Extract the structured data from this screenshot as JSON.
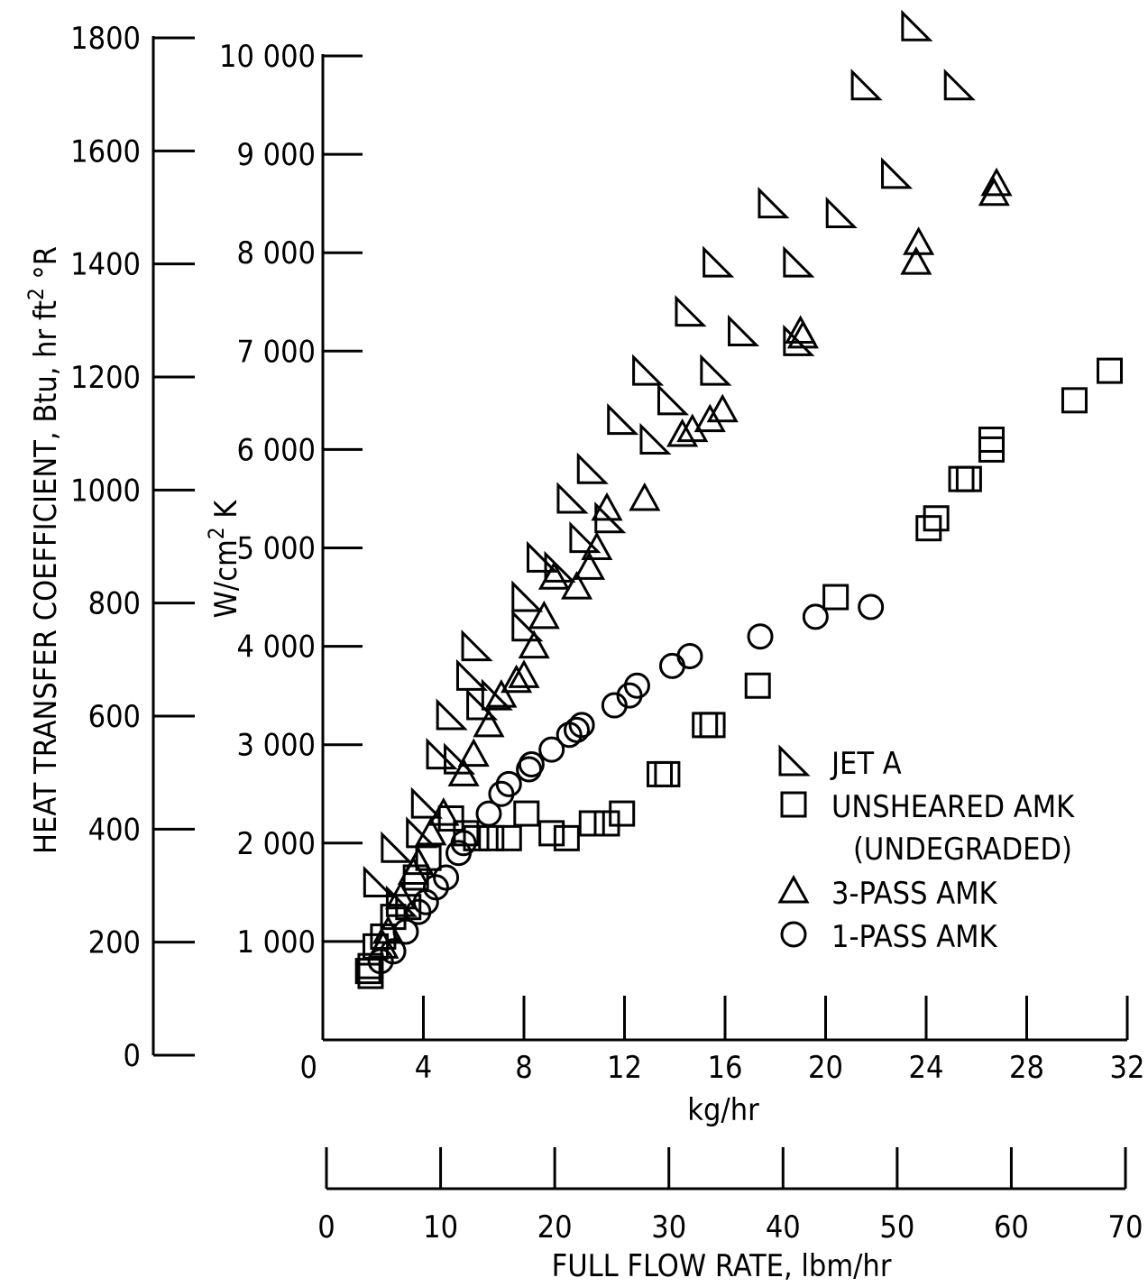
{
  "chart_data": {
    "type": "scatter",
    "title": "",
    "axes": {
      "y_left_outer": {
        "label_main": "HEAT TRANSFER COEFFICIENT, Btu, hr ft",
        "label_sup": "2",
        "label_end": " °R",
        "ticks": [
          "1800",
          "1600",
          "1400",
          "1200",
          "1000",
          "800",
          "600",
          "400",
          "200",
          "0"
        ],
        "ylim": [
          0,
          1800
        ]
      },
      "y_left_inner": {
        "label_main": "W/cm",
        "label_sup": "2",
        "label_end": " K",
        "ticks": [
          "10 000",
          "9 000",
          "8 000",
          "7 000",
          "6 000",
          "5 000",
          "4 000",
          "3 000",
          "2 000",
          "1 000",
          "0"
        ],
        "ylim": [
          0,
          10000
        ]
      },
      "x_primary": {
        "label": "kg/hr",
        "ticks": [
          "0",
          "4",
          "8",
          "12",
          "16",
          "20",
          "24",
          "28",
          "32"
        ],
        "xlim": [
          0,
          32
        ]
      },
      "x_secondary": {
        "label": "FULL FLOW RATE,  lbm/hr",
        "ticks": [
          "0",
          "10",
          "20",
          "30",
          "40",
          "50",
          "60",
          "70"
        ],
        "xlim": [
          0,
          70
        ]
      }
    },
    "legend": {
      "placement": "center-right",
      "entries": [
        {
          "label": "JET A",
          "marker": "right-triangle"
        },
        {
          "label": "UNSHEARED AMK",
          "label2": "(UNDEGRADED)",
          "marker": "square"
        },
        {
          "label": "3-PASS AMK",
          "marker": "triangle"
        },
        {
          "label": "1-PASS AMK",
          "marker": "circle"
        }
      ]
    },
    "series": [
      {
        "name": "JET A",
        "points": [
          [
            23.6,
            10300
          ],
          [
            21.6,
            9700
          ],
          [
            25.3,
            9700
          ],
          [
            22.8,
            8800
          ],
          [
            17.9,
            8500
          ],
          [
            20.6,
            8400
          ],
          [
            15.7,
            7900
          ],
          [
            18.9,
            7900
          ],
          [
            14.6,
            7400
          ],
          [
            16.7,
            7200
          ],
          [
            18.9,
            7100
          ],
          [
            12.9,
            6800
          ],
          [
            15.6,
            6800
          ],
          [
            13.9,
            6500
          ],
          [
            11.9,
            6300
          ],
          [
            13.2,
            6100
          ],
          [
            10.7,
            5800
          ],
          [
            9.9,
            5500
          ],
          [
            11.4,
            5300
          ],
          [
            10.4,
            5100
          ],
          [
            8.7,
            4900
          ],
          [
            9.4,
            4800
          ],
          [
            8.1,
            4500
          ],
          [
            8.1,
            4200
          ],
          [
            6.1,
            4000
          ],
          [
            5.9,
            3700
          ],
          [
            6.3,
            3400
          ],
          [
            5.1,
            3300
          ],
          [
            6.9,
            3500
          ],
          [
            4.7,
            2900
          ],
          [
            5.4,
            2850
          ],
          [
            4.1,
            2400
          ],
          [
            3.9,
            2100
          ],
          [
            2.9,
            1950
          ],
          [
            2.2,
            1600
          ],
          [
            3.1,
            1400
          ]
        ]
      },
      {
        "name": "UNSHEARED AMK (UNDEGRADED)",
        "points": [
          [
            31.3,
            6800
          ],
          [
            29.9,
            6500
          ],
          [
            26.6,
            6100
          ],
          [
            26.6,
            6000
          ],
          [
            25.7,
            5700
          ],
          [
            25.4,
            5700
          ],
          [
            24.4,
            5300
          ],
          [
            24.1,
            5200
          ],
          [
            20.4,
            4500
          ],
          [
            17.3,
            3600
          ],
          [
            15.5,
            3200
          ],
          [
            15.2,
            3200
          ],
          [
            13.7,
            2700
          ],
          [
            13.4,
            2700
          ],
          [
            11.9,
            2300
          ],
          [
            11.3,
            2200
          ],
          [
            10.7,
            2200
          ],
          [
            9.1,
            2100
          ],
          [
            9.7,
            2050
          ],
          [
            8.1,
            2300
          ],
          [
            7.4,
            2050
          ],
          [
            6.7,
            2050
          ],
          [
            6.1,
            2050
          ],
          [
            5.7,
            2100
          ],
          [
            5.1,
            2250
          ],
          [
            4.2,
            1850
          ],
          [
            3.7,
            1650
          ],
          [
            3.4,
            1350
          ],
          [
            2.8,
            1250
          ],
          [
            2.4,
            1050
          ],
          [
            2.1,
            950
          ],
          [
            1.9,
            750
          ],
          [
            1.8,
            700
          ],
          [
            1.9,
            650
          ]
        ]
      },
      {
        "name": "3-PASS AMK",
        "points": [
          [
            26.8,
            8700
          ],
          [
            26.7,
            8600
          ],
          [
            23.7,
            8100
          ],
          [
            23.6,
            7900
          ],
          [
            19.0,
            7200
          ],
          [
            19.1,
            7150
          ],
          [
            12.8,
            5500
          ],
          [
            15.9,
            6400
          ],
          [
            15.4,
            6300
          ],
          [
            14.7,
            6200
          ],
          [
            14.3,
            6150
          ],
          [
            11.3,
            5400
          ],
          [
            10.9,
            5000
          ],
          [
            10.6,
            4800
          ],
          [
            10.1,
            4600
          ],
          [
            9.2,
            4700
          ],
          [
            8.8,
            4300
          ],
          [
            8.4,
            4000
          ],
          [
            8.0,
            3700
          ],
          [
            7.7,
            3650
          ],
          [
            7.1,
            3500
          ],
          [
            6.6,
            3200
          ],
          [
            6.0,
            2900
          ],
          [
            5.6,
            2700
          ],
          [
            4.8,
            2300
          ],
          [
            4.3,
            2100
          ],
          [
            3.8,
            1800
          ],
          [
            3.6,
            1700
          ],
          [
            3.1,
            1450
          ],
          [
            2.6,
            1100
          ],
          [
            2.4,
            950
          ]
        ]
      },
      {
        "name": "1-PASS AMK",
        "points": [
          [
            21.8,
            4400
          ],
          [
            19.6,
            4300
          ],
          [
            17.4,
            4100
          ],
          [
            14.6,
            3900
          ],
          [
            13.9,
            3800
          ],
          [
            12.5,
            3600
          ],
          [
            12.2,
            3500
          ],
          [
            11.6,
            3400
          ],
          [
            10.3,
            3200
          ],
          [
            10.1,
            3150
          ],
          [
            9.8,
            3100
          ],
          [
            9.1,
            2950
          ],
          [
            8.3,
            2800
          ],
          [
            8.2,
            2750
          ],
          [
            7.4,
            2600
          ],
          [
            7.1,
            2500
          ],
          [
            6.6,
            2300
          ],
          [
            5.6,
            2000
          ],
          [
            5.4,
            1900
          ],
          [
            4.9,
            1650
          ],
          [
            4.5,
            1550
          ],
          [
            4.1,
            1400
          ],
          [
            3.8,
            1300
          ],
          [
            3.3,
            1100
          ],
          [
            2.8,
            900
          ],
          [
            2.3,
            800
          ]
        ]
      }
    ]
  }
}
